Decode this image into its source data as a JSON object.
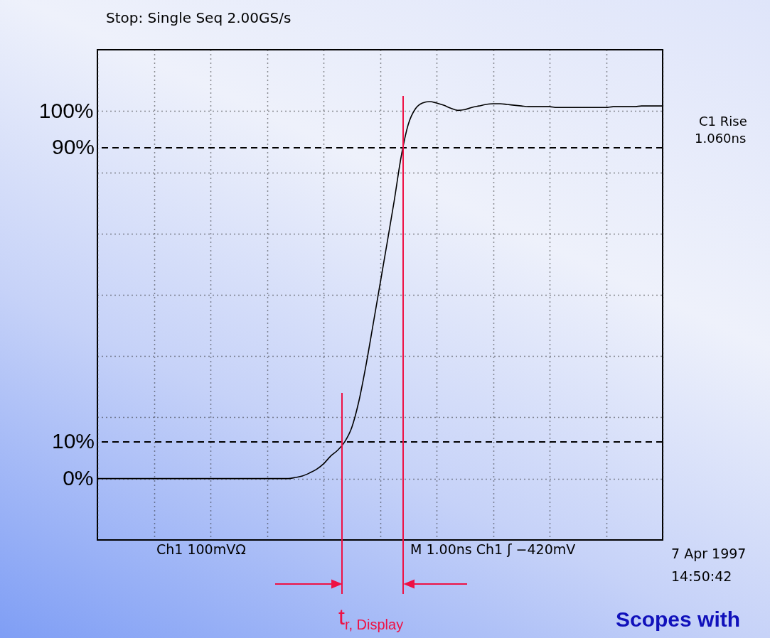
{
  "chart_data": {
    "type": "line",
    "title": "Stop: Single Seq  2.00GS/s",
    "categories": [
      null,
      null,
      null,
      null,
      null,
      null,
      null,
      null,
      null,
      null,
      null,
      null,
      null,
      null,
      null,
      null,
      null,
      null,
      null,
      null,
      null,
      null,
      null,
      null,
      null,
      null,
      null,
      null,
      null,
      null,
      null,
      null,
      null,
      null,
      null,
      null,
      null,
      null,
      null,
      null,
      null,
      null,
      null,
      null,
      null,
      null,
      null,
      null,
      null,
      null,
      null,
      null,
      null,
      null,
      null,
      null,
      null,
      null,
      null,
      null,
      null,
      null,
      null,
      null,
      null,
      null,
      null,
      null,
      null,
      null,
      null,
      null,
      null,
      null,
      null,
      null,
      null,
      null,
      null,
      null,
      null
    ],
    "values": [
      0,
      0,
      0,
      0,
      0,
      0,
      0,
      0,
      0,
      0,
      0,
      0,
      0,
      0,
      0,
      0,
      0,
      0,
      0,
      0,
      0,
      0,
      0,
      0,
      0,
      0,
      0,
      0,
      0.3,
      0.7,
      1.5,
      2.5,
      4.0,
      6.1,
      7.7,
      10.0,
      13.9,
      21.0,
      30.7,
      41.7,
      52.9,
      64.1,
      75.5,
      87.7,
      96.4,
      100.6,
      102.2,
      102.6,
      102.2,
      101.6,
      100.8,
      100.2,
      100.4,
      101.0,
      101.4,
      101.8,
      102.0,
      102.0,
      101.8,
      101.6,
      101.4,
      101.2,
      101.2,
      101.2,
      101.2,
      101.0,
      101.0,
      101.0,
      101.0,
      101.0,
      101.0,
      101.0,
      101.0,
      101.2,
      101.2,
      101.2,
      101.2,
      101.4,
      101.4,
      101.4,
      101.4
    ],
    "color": "#000000",
    "ylim": [
      -16.7,
      116.7
    ],
    "yticks": [
      {
        "value": 0,
        "label": "0%"
      },
      {
        "value": 16.7,
        "label": null
      },
      {
        "value": 33.3,
        "label": null
      },
      {
        "value": 50,
        "label": null
      },
      {
        "value": 66.7,
        "label": null
      },
      {
        "value": 83.3,
        "label": null
      },
      {
        "value": 100,
        "label": "100%"
      }
    ],
    "tick_labels": "y",
    "grid": true,
    "ref_lines": [
      {
        "axis": "y",
        "value": 10,
        "label": "10%",
        "color": "#000000",
        "line_style": "dashed"
      },
      {
        "axis": "y",
        "value": 90,
        "label": "90%",
        "color": "#000000",
        "line_style": "dashed"
      }
    ],
    "annotations": [
      "Ch1  100mVΩ",
      "M 1.00ns  Ch1 ʃ  −420mV",
      "7 Apr 1997",
      "14:50:42",
      "C1 Rise",
      "1.060ns",
      "t$_{r, Display}$",
      "Scopes with"
    ]
  }
}
